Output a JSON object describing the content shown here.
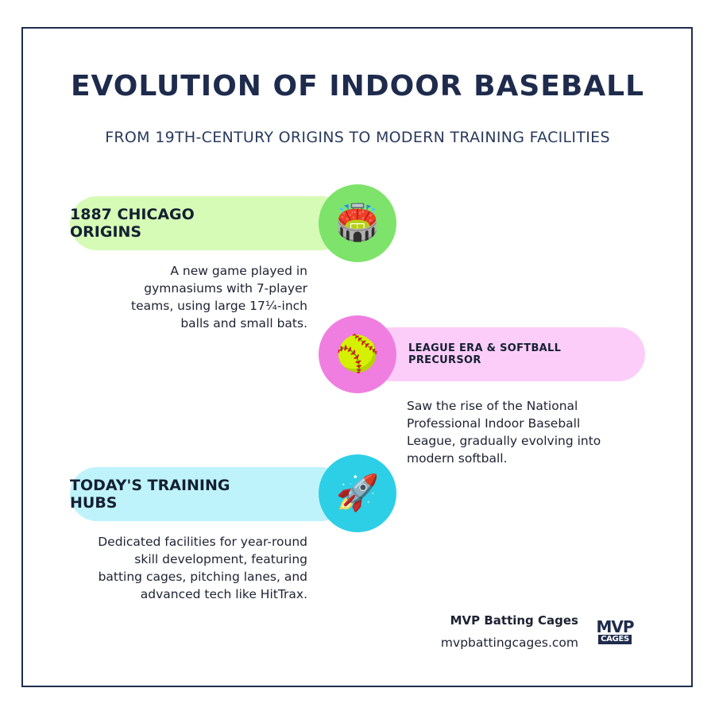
{
  "header": {
    "title": "EVOLUTION OF INDOOR BASEBALL",
    "subtitle": "FROM 19TH-CENTURY ORIGINS TO MODERN TRAINING FACILITIES"
  },
  "timeline": [
    {
      "label": "1887 CHICAGO ORIGINS",
      "icon": "stadium-icon",
      "glyph": "🏟️",
      "pill_color": "#d6fbb6",
      "circle_color": "#7ee36a",
      "description": [
        "A new game played in",
        "gymnasiums with 7-player",
        "teams, using large 17¼-inch",
        "balls and small bats."
      ]
    },
    {
      "label": [
        "LEAGUE ERA & SOFTBALL",
        "PRECURSOR"
      ],
      "icon": "softball-icon",
      "glyph": "🥎",
      "pill_color": "#fccdf8",
      "circle_color": "#f07ee0",
      "description": [
        "Saw the rise of the National",
        "Professional Indoor Baseball",
        "League, gradually evolving into",
        "modern softball."
      ]
    },
    {
      "label": "TODAY'S TRAINING HUBS",
      "icon": "rocket-icon",
      "glyph": "🚀",
      "pill_color": "#bff3fb",
      "circle_color": "#2dcfe6",
      "description": [
        "Dedicated facilities for year-round",
        "skill development, featuring",
        "batting cages, pitching lanes, and",
        "advanced tech like HitTrax."
      ]
    }
  ],
  "footer": {
    "brand_name": "MVP Batting Cages",
    "url": "mvpbattingcages.com",
    "logo_top": "MVP",
    "logo_bottom": "CAGES"
  }
}
